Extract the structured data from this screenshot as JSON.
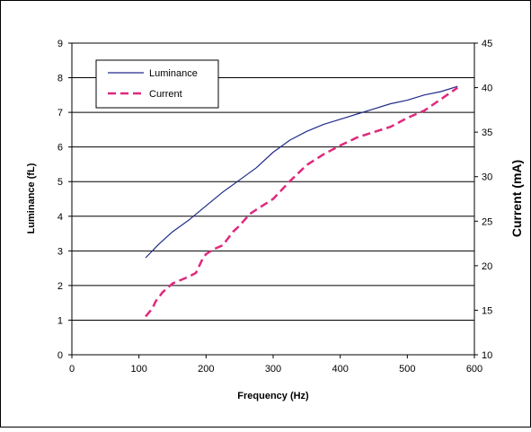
{
  "chart_data": {
    "type": "line",
    "title": "",
    "xlabel": "Frequency (Hz)",
    "ylabel": "Luminance (fL)",
    "y2label": "Current (mA)",
    "xlim": [
      0,
      600
    ],
    "ylim": [
      0,
      9
    ],
    "y2lim": [
      10,
      45
    ],
    "xticks": [
      "0",
      "100",
      "200",
      "300",
      "400",
      "500",
      "600"
    ],
    "yticks": [
      "0",
      "1",
      "2",
      "3",
      "4",
      "5",
      "6",
      "7",
      "8",
      "9"
    ],
    "y2ticks": [
      "10",
      "15",
      "20",
      "25",
      "30",
      "35",
      "40",
      "45"
    ],
    "grid": "horizontal",
    "legend_position": "top-left",
    "series": [
      {
        "name": "Luminance",
        "axis": "left",
        "style": "solid",
        "color": "#1f2a8a",
        "x": [
          110,
          130,
          150,
          175,
          200,
          225,
          250,
          275,
          300,
          325,
          350,
          375,
          400,
          425,
          450,
          475,
          500,
          525,
          550,
          575
        ],
        "y": [
          2.8,
          3.2,
          3.55,
          3.9,
          4.3,
          4.7,
          5.05,
          5.4,
          5.85,
          6.2,
          6.45,
          6.65,
          6.8,
          6.95,
          7.1,
          7.25,
          7.35,
          7.5,
          7.6,
          7.75
        ]
      },
      {
        "name": "Current",
        "axis": "right",
        "style": "dashed",
        "color": "#e0287d",
        "x": [
          110,
          120,
          125,
          130,
          135,
          150,
          175,
          185,
          195,
          200,
          210,
          225,
          240,
          250,
          265,
          275,
          300,
          325,
          350,
          375,
          400,
          425,
          450,
          475,
          500,
          525,
          550,
          575
        ],
        "y": [
          14.3,
          15.2,
          16.0,
          16.5,
          17.0,
          18.0,
          18.8,
          19.2,
          20.8,
          21.3,
          21.8,
          22.3,
          23.8,
          24.5,
          25.8,
          26.3,
          27.5,
          29.5,
          31.3,
          32.5,
          33.5,
          34.4,
          35.0,
          35.6,
          36.6,
          37.4,
          38.7,
          40.0
        ]
      }
    ]
  }
}
